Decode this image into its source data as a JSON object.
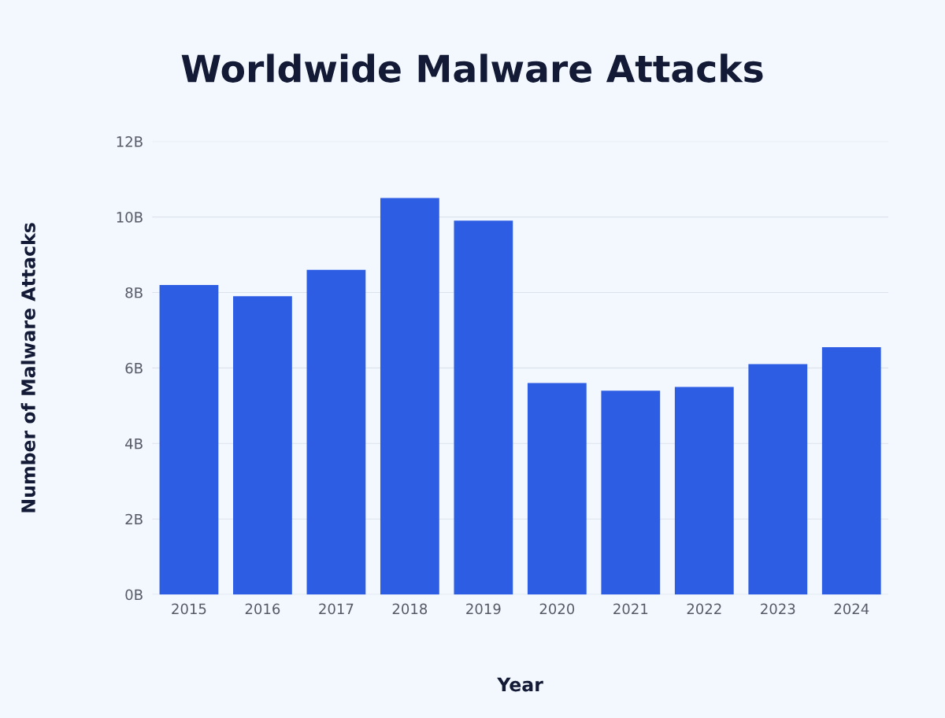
{
  "chart_data": {
    "type": "bar",
    "title": "Worldwide Malware Attacks",
    "xlabel": "Year",
    "ylabel": "Number of Malware Attacks",
    "categories": [
      "2015",
      "2016",
      "2017",
      "2018",
      "2019",
      "2020",
      "2021",
      "2022",
      "2023",
      "2024"
    ],
    "values": [
      8.2,
      7.9,
      8.6,
      10.5,
      9.9,
      5.6,
      5.4,
      5.5,
      6.1,
      6.55
    ],
    "color": "#2d5de3",
    "ylim": [
      0,
      12
    ],
    "yticks": [
      {
        "value": 0,
        "label": "0B"
      },
      {
        "value": 2,
        "label": "2B"
      },
      {
        "value": 4,
        "label": "4B"
      },
      {
        "value": 6,
        "label": "6B"
      },
      {
        "value": 8,
        "label": "8B"
      },
      {
        "value": 10,
        "label": "10B"
      },
      {
        "value": 12,
        "label": "12B"
      }
    ],
    "grid": "y",
    "legend": false
  }
}
